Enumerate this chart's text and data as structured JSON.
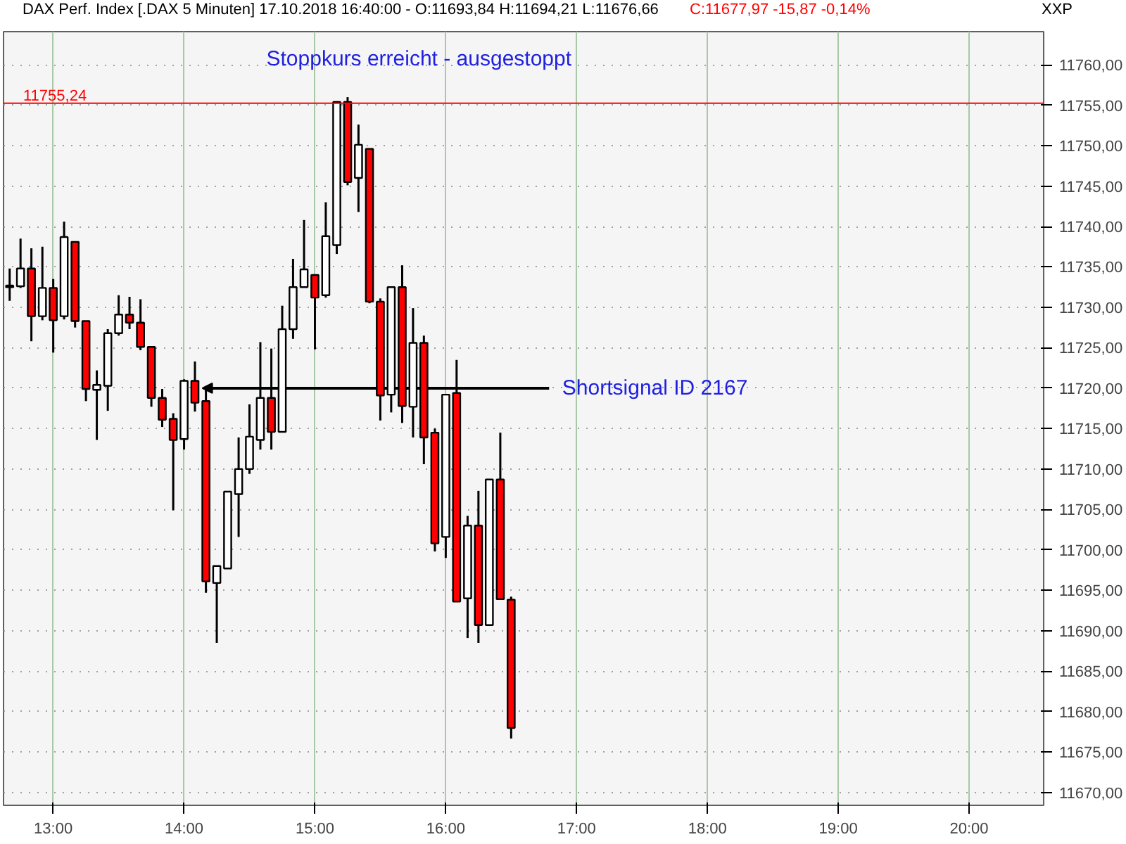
{
  "chart_data": {
    "type": "candlestick",
    "title": "DAX Perf. Index [.DAX  5 Minuten] 17.10.2018 16:40:00 - O:11693,84 H:11694,21 L:11676,66",
    "subtitle": "C:11677,97 -15,87 -0,14%",
    "ylabel": "XXP",
    "x": [
      12.667,
      12.75,
      12.833,
      12.917,
      13.0,
      13.083,
      13.167,
      13.25,
      13.333,
      13.417,
      13.5,
      13.583,
      13.667,
      13.75,
      13.833,
      13.917,
      14.0,
      14.083,
      14.167,
      14.25,
      14.333,
      14.417,
      14.5,
      14.583,
      14.667,
      14.75,
      14.833,
      14.917,
      15.0,
      15.083,
      15.167,
      15.25,
      15.333,
      15.417,
      15.5,
      15.583,
      15.667,
      15.75,
      15.833,
      15.917,
      16.0,
      16.083,
      16.167,
      16.25,
      16.333,
      16.417,
      16.5
    ],
    "ohlc": [
      [
        11732.5,
        11734.8,
        11730.8,
        11732.7
      ],
      [
        11732.6,
        11738.5,
        11732.4,
        11734.8
      ],
      [
        11734.8,
        11737.3,
        11725.8,
        11728.9
      ],
      [
        11728.9,
        11737.5,
        11728.4,
        11732.4
      ],
      [
        11732.4,
        11733.5,
        11724.4,
        11728.4
      ],
      [
        11728.9,
        11740.6,
        11728.5,
        11738.7
      ],
      [
        11738.1,
        11738.1,
        11727.5,
        11728.3
      ],
      [
        11728.3,
        11728.3,
        11718.4,
        11719.9
      ],
      [
        11719.8,
        11722.2,
        11713.6,
        11720.4
      ],
      [
        11720.3,
        11727.3,
        11717.2,
        11726.8
      ],
      [
        11726.8,
        11731.5,
        11726.5,
        11729.1
      ],
      [
        11729.1,
        11731.3,
        11727.3,
        11728.1
      ],
      [
        11728.1,
        11731.0,
        11724.7,
        11725.1
      ],
      [
        11725.1,
        11725.1,
        11717.7,
        11718.8
      ],
      [
        11718.8,
        11719.9,
        11715.2,
        11716.1
      ],
      [
        11716.2,
        11716.9,
        11704.9,
        11713.6
      ],
      [
        11713.7,
        11721.1,
        11712.4,
        11720.9
      ],
      [
        11720.9,
        11723.3,
        11717.1,
        11718.2
      ],
      [
        11718.4,
        11719.8,
        11694.7,
        11696.1
      ],
      [
        11695.9,
        11698.0,
        11688.5,
        11698.0
      ],
      [
        11697.7,
        11707.2,
        11697.7,
        11707.2
      ],
      [
        11706.9,
        11713.9,
        11701.6,
        11710.0
      ],
      [
        11710.0,
        11718.0,
        11709.4,
        11714.0
      ],
      [
        11713.6,
        11725.7,
        11712.4,
        11718.8
      ],
      [
        11718.8,
        11724.9,
        11712.4,
        11714.6
      ],
      [
        11714.6,
        11730.2,
        11714.6,
        11727.3
      ],
      [
        11727.3,
        11736.0,
        11726.1,
        11732.5
      ],
      [
        11732.5,
        11740.8,
        11732.5,
        11734.7
      ],
      [
        11734.0,
        11734.0,
        11724.8,
        11731.2
      ],
      [
        11731.5,
        11743.0,
        11731.2,
        11738.8
      ],
      [
        11737.7,
        11755.4,
        11736.6,
        11755.4
      ],
      [
        11755.4,
        11756.0,
        11745.1,
        11745.5
      ],
      [
        11746.0,
        11752.6,
        11741.8,
        11750.1
      ],
      [
        11749.6,
        11749.6,
        11730.5,
        11730.7
      ],
      [
        11730.7,
        11731.1,
        11716.0,
        11719.1
      ],
      [
        11719.2,
        11732.5,
        11717.0,
        11732.5
      ],
      [
        11732.5,
        11735.2,
        11715.7,
        11717.8
      ],
      [
        11717.7,
        11729.9,
        11713.9,
        11725.6
      ],
      [
        11725.6,
        11726.5,
        11710.6,
        11713.9
      ],
      [
        11714.5,
        11715.0,
        11699.8,
        11700.8
      ],
      [
        11701.6,
        11719.3,
        11699.0,
        11719.2
      ],
      [
        11719.4,
        11723.5,
        11693.6,
        11693.6
      ],
      [
        11694.0,
        11704.2,
        11689.1,
        11703.0
      ],
      [
        11703.0,
        11707.3,
        11688.5,
        11690.7
      ],
      [
        11690.7,
        11708.7,
        11690.7,
        11708.7
      ],
      [
        11708.7,
        11714.5,
        11693.9,
        11693.9
      ],
      [
        11693.84,
        11694.21,
        11676.66,
        11677.97
      ]
    ],
    "colors": [
      "#ffffff",
      "#ffffff",
      "#ff0000",
      "#ffffff",
      "#ff0000",
      "#ffffff",
      "#ff0000",
      "#ff0000",
      "#ffffff",
      "#ffffff",
      "#ffffff",
      "#ff0000",
      "#ff0000",
      "#ff0000",
      "#ff0000",
      "#ff0000",
      "#ffffff",
      "#ff0000",
      "#ff0000",
      "#ffffff",
      "#ffffff",
      "#ffffff",
      "#ffffff",
      "#ffffff",
      "#ff0000",
      "#ffffff",
      "#ffffff",
      "#ffffff",
      "#ff0000",
      "#ffffff",
      "#ffffff",
      "#ff0000",
      "#ffffff",
      "#ff0000",
      "#ff0000",
      "#ffffff",
      "#ff0000",
      "#ffffff",
      "#ff0000",
      "#ff0000",
      "#ffffff",
      "#ff0000",
      "#ffffff",
      "#ff0000",
      "#ffffff",
      "#ff0000",
      "#ff0000"
    ],
    "xlim": [
      12.62,
      20.57
    ],
    "xticks": [
      {
        "value": 13,
        "label": "13:00"
      },
      {
        "value": 14,
        "label": "14:00"
      },
      {
        "value": 15,
        "label": "15:00"
      },
      {
        "value": 16,
        "label": "16:00"
      },
      {
        "value": 17,
        "label": "17:00"
      },
      {
        "value": 18,
        "label": "18:00"
      },
      {
        "value": 19,
        "label": "19:00"
      },
      {
        "value": 20,
        "label": "20:00"
      }
    ],
    "ylim": [
      11668.4,
      11764.1
    ],
    "yticks": [
      {
        "value": 11670,
        "label": "11670,00"
      },
      {
        "value": 11675,
        "label": "11675,00"
      },
      {
        "value": 11680,
        "label": "11680,00"
      },
      {
        "value": 11685,
        "label": "11685,00"
      },
      {
        "value": 11690,
        "label": "11690,00"
      },
      {
        "value": 11695,
        "label": "11695,00"
      },
      {
        "value": 11700,
        "label": "11700,00"
      },
      {
        "value": 11705,
        "label": "11705,00"
      },
      {
        "value": 11710,
        "label": "11710,00"
      },
      {
        "value": 11715,
        "label": "11715,00"
      },
      {
        "value": 11720,
        "label": "11720,00"
      },
      {
        "value": 11725,
        "label": "11725,00"
      },
      {
        "value": 11730,
        "label": "11730,00"
      },
      {
        "value": 11735,
        "label": "11735,00"
      },
      {
        "value": 11740,
        "label": "11740,00"
      },
      {
        "value": 11745,
        "label": "11745,00"
      },
      {
        "value": 11750,
        "label": "11750,00"
      },
      {
        "value": 11755,
        "label": "11755,00"
      },
      {
        "value": 11760,
        "label": "11760,00"
      }
    ],
    "ref_lines": [
      {
        "axis": "y",
        "value": 11755.24,
        "label": "11755,24",
        "color": "#ff0000"
      }
    ],
    "annotations": [
      "Stoppkurs erreicht - ausgestoppt",
      {
        "text": "Shortsignal ID 2167",
        "x": 14.14,
        "y": 11720
      }
    ],
    "grid": true
  }
}
